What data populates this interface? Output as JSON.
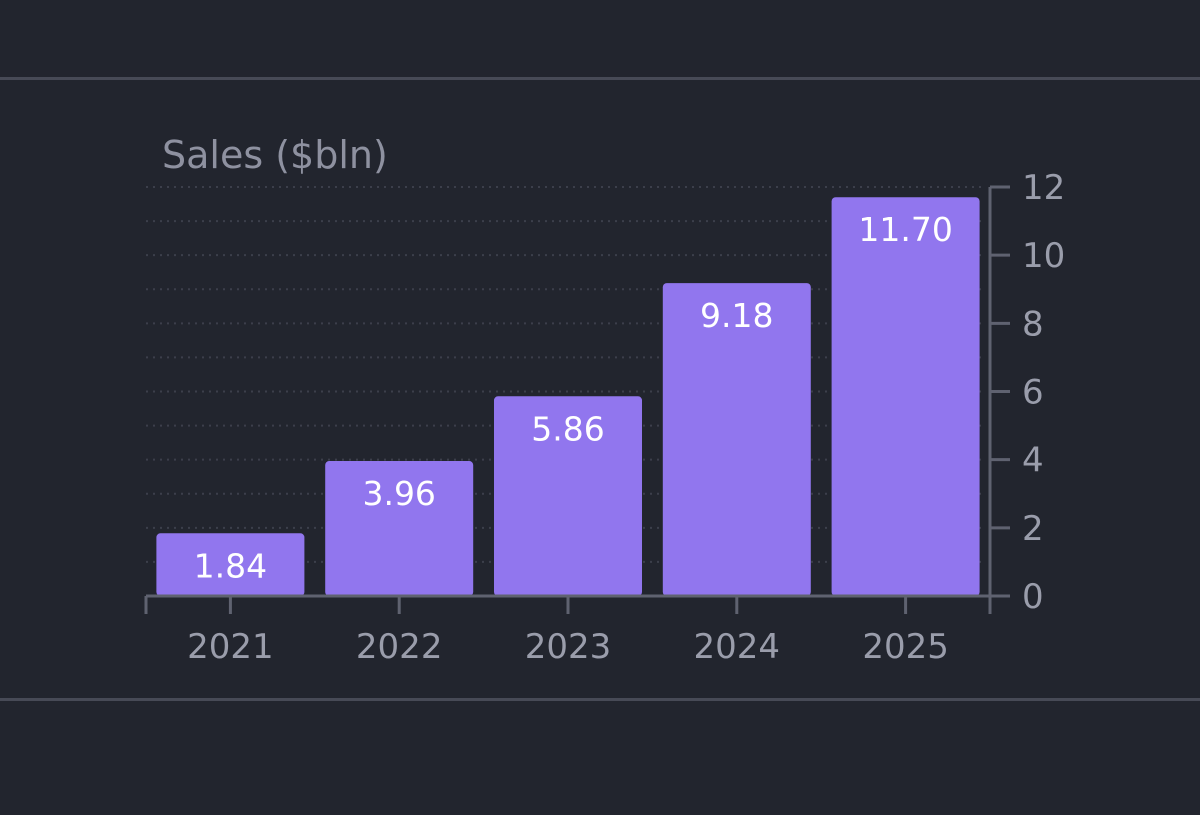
{
  "colors": {
    "background": "#22252e",
    "bar": "#9176ee",
    "axis": "#5f6270",
    "grid": "#3c3f4b",
    "tick_text": "#9a9dab",
    "bar_label_text": "#ffffff"
  },
  "chart_data": {
    "type": "bar",
    "title": "",
    "ylabel": "Sales ($bln)",
    "xlabel": "",
    "categories": [
      "2021",
      "2022",
      "2023",
      "2024",
      "2025"
    ],
    "values": [
      1.84,
      3.96,
      5.86,
      9.18,
      11.7
    ],
    "value_labels": [
      "1.84",
      "3.96",
      "5.86",
      "9.18",
      "11.70"
    ],
    "ylim": [
      0,
      12
    ],
    "yticks": [
      0,
      2,
      4,
      6,
      8,
      10,
      12
    ],
    "y_axis_side": "right",
    "grid": "horizontal-dotted"
  }
}
